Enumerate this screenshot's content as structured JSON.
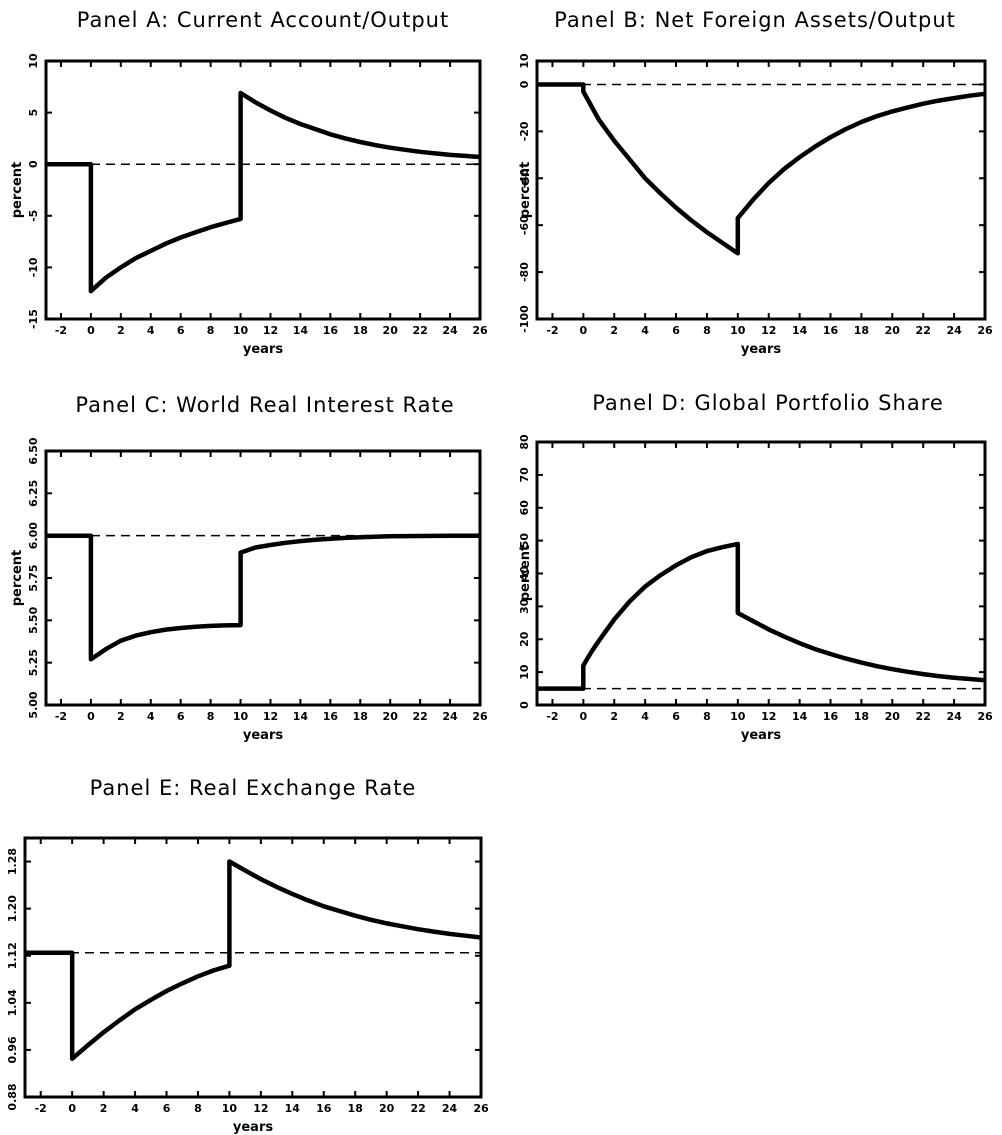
{
  "colors": {
    "line": "#000000",
    "background": "#ffffff"
  },
  "chart_data": [
    {
      "id": "A",
      "type": "line",
      "title": "Panel A: Current Account/Output",
      "xlabel": "years",
      "ylabel": "percent",
      "xlim": [
        -3,
        26
      ],
      "ylim": [
        -15,
        10
      ],
      "xticks": [
        -2,
        0,
        2,
        4,
        6,
        8,
        10,
        12,
        14,
        16,
        18,
        20,
        22,
        24,
        26
      ],
      "xtick_labels": [
        "-2",
        "0",
        "2",
        "4",
        "6",
        "8",
        "10",
        "12",
        "14",
        "16",
        "18",
        "20",
        "22",
        "24",
        "26"
      ],
      "yticks": [
        -15,
        -10,
        -5,
        0,
        5,
        10
      ],
      "ytick_labels": [
        "-15",
        "-10",
        "-5",
        "0",
        "5",
        "10"
      ],
      "baseline": 0,
      "series": [
        {
          "values": [
            [
              -3,
              0
            ],
            [
              0,
              0
            ],
            [
              0,
              -12.3
            ],
            [
              1,
              -11.0
            ],
            [
              2,
              -10.0
            ],
            [
              3,
              -9.1
            ],
            [
              4,
              -8.4
            ],
            [
              5,
              -7.7
            ],
            [
              6,
              -7.1
            ],
            [
              7,
              -6.6
            ],
            [
              8,
              -6.1
            ],
            [
              9,
              -5.7
            ],
            [
              10,
              -5.3
            ],
            [
              10,
              6.9
            ],
            [
              11,
              6.0
            ],
            [
              12,
              5.2
            ],
            [
              13,
              4.5
            ],
            [
              14,
              3.9
            ],
            [
              15,
              3.4
            ],
            [
              16,
              2.9
            ],
            [
              17,
              2.5
            ],
            [
              18,
              2.15
            ],
            [
              19,
              1.85
            ],
            [
              20,
              1.6
            ],
            [
              21,
              1.4
            ],
            [
              22,
              1.2
            ],
            [
              23,
              1.05
            ],
            [
              24,
              0.9
            ],
            [
              25,
              0.8
            ],
            [
              26,
              0.7
            ]
          ]
        }
      ]
    },
    {
      "id": "B",
      "type": "line",
      "title": "Panel B: Net Foreign Assets/Output",
      "xlabel": "years",
      "ylabel": "percent",
      "xlim": [
        -3,
        26
      ],
      "ylim": [
        -100,
        10
      ],
      "xticks": [
        -2,
        0,
        2,
        4,
        6,
        8,
        10,
        12,
        14,
        16,
        18,
        20,
        22,
        24,
        26
      ],
      "xtick_labels": [
        "-2",
        "0",
        "2",
        "4",
        "6",
        "8",
        "10",
        "12",
        "14",
        "16",
        "18",
        "20",
        "22",
        "24",
        "26"
      ],
      "yticks": [
        -100,
        -80,
        -60,
        -40,
        -20,
        0,
        10
      ],
      "ytick_labels": [
        "-100",
        "-80",
        "-60",
        "-40",
        "-20",
        "0",
        "10"
      ],
      "baseline": 0,
      "series": [
        {
          "values": [
            [
              -3,
              0
            ],
            [
              0,
              0
            ],
            [
              0,
              -3
            ],
            [
              0.5,
              -9
            ],
            [
              1,
              -15
            ],
            [
              2,
              -24
            ],
            [
              3,
              -32
            ],
            [
              4,
              -40
            ],
            [
              5,
              -46.5
            ],
            [
              6,
              -52.5
            ],
            [
              7,
              -58
            ],
            [
              8,
              -63
            ],
            [
              9,
              -67.5
            ],
            [
              10,
              -72
            ],
            [
              10,
              -57
            ],
            [
              11,
              -49
            ],
            [
              12,
              -42
            ],
            [
              13,
              -36
            ],
            [
              14,
              -31
            ],
            [
              15,
              -26.5
            ],
            [
              16,
              -22.5
            ],
            [
              17,
              -19
            ],
            [
              18,
              -16
            ],
            [
              19,
              -13.5
            ],
            [
              20,
              -11.5
            ],
            [
              21,
              -9.8
            ],
            [
              22,
              -8.2
            ],
            [
              23,
              -6.9
            ],
            [
              24,
              -5.8
            ],
            [
              25,
              -4.8
            ],
            [
              26,
              -4
            ]
          ]
        }
      ]
    },
    {
      "id": "C",
      "type": "line",
      "title": "Panel C: World Real Interest Rate",
      "xlabel": "years",
      "ylabel": "percent",
      "xlim": [
        -3,
        26
      ],
      "ylim": [
        5.0,
        6.5
      ],
      "xticks": [
        -2,
        0,
        2,
        4,
        6,
        8,
        10,
        12,
        14,
        16,
        18,
        20,
        22,
        24,
        26
      ],
      "xtick_labels": [
        "-2",
        "0",
        "2",
        "4",
        "6",
        "8",
        "10",
        "12",
        "14",
        "16",
        "18",
        "20",
        "22",
        "24",
        "26"
      ],
      "yticks": [
        5.0,
        5.25,
        5.5,
        5.75,
        6.0,
        6.25,
        6.5
      ],
      "ytick_labels": [
        "5.00",
        "5.25",
        "5.50",
        "5.75",
        "6.00",
        "6.25",
        "6.50"
      ],
      "baseline": 6.0,
      "series": [
        {
          "values": [
            [
              -3,
              6.0
            ],
            [
              0,
              6.0
            ],
            [
              0,
              5.27
            ],
            [
              1,
              5.33
            ],
            [
              2,
              5.38
            ],
            [
              3,
              5.41
            ],
            [
              4,
              5.43
            ],
            [
              5,
              5.445
            ],
            [
              6,
              5.455
            ],
            [
              7,
              5.462
            ],
            [
              8,
              5.467
            ],
            [
              9,
              5.47
            ],
            [
              10,
              5.472
            ],
            [
              10,
              5.9
            ],
            [
              11,
              5.93
            ],
            [
              12,
              5.945
            ],
            [
              13,
              5.958
            ],
            [
              14,
              5.968
            ],
            [
              15,
              5.976
            ],
            [
              16,
              5.982
            ],
            [
              17,
              5.987
            ],
            [
              18,
              5.991
            ],
            [
              19,
              5.994
            ],
            [
              20,
              5.996
            ],
            [
              22,
              5.998
            ],
            [
              24,
              5.999
            ],
            [
              26,
              6.0
            ]
          ]
        }
      ]
    },
    {
      "id": "D",
      "type": "line",
      "title": "Panel D: Global Portfolio Share",
      "xlabel": "years",
      "ylabel": "percent",
      "xlim": [
        -3,
        26
      ],
      "ylim": [
        0,
        80
      ],
      "xticks": [
        -2,
        0,
        2,
        4,
        6,
        8,
        10,
        12,
        14,
        16,
        18,
        20,
        22,
        24,
        26
      ],
      "xtick_labels": [
        "-2",
        "0",
        "2",
        "4",
        "6",
        "8",
        "10",
        "12",
        "14",
        "16",
        "18",
        "20",
        "22",
        "24",
        "26"
      ],
      "yticks": [
        0,
        10,
        20,
        30,
        40,
        50,
        60,
        70,
        80
      ],
      "ytick_labels": [
        "0",
        "10",
        "20",
        "30",
        "40",
        "50",
        "60",
        "70",
        "80"
      ],
      "baseline": 5,
      "series": [
        {
          "values": [
            [
              -3,
              5
            ],
            [
              0,
              5
            ],
            [
              0,
              12
            ],
            [
              0.5,
              16
            ],
            [
              1,
              19.5
            ],
            [
              2,
              26
            ],
            [
              3,
              31.5
            ],
            [
              4,
              36
            ],
            [
              5,
              39.5
            ],
            [
              6,
              42.5
            ],
            [
              7,
              45
            ],
            [
              8,
              46.8
            ],
            [
              9,
              48
            ],
            [
              10,
              49
            ],
            [
              10,
              28
            ],
            [
              11,
              25.5
            ],
            [
              12,
              23
            ],
            [
              13,
              20.8
            ],
            [
              14,
              18.8
            ],
            [
              15,
              17
            ],
            [
              16,
              15.5
            ],
            [
              17,
              14.1
            ],
            [
              18,
              12.9
            ],
            [
              19,
              11.8
            ],
            [
              20,
              10.9
            ],
            [
              21,
              10.1
            ],
            [
              22,
              9.4
            ],
            [
              23,
              8.8
            ],
            [
              24,
              8.3
            ],
            [
              25,
              7.9
            ],
            [
              26,
              7.5
            ]
          ]
        }
      ]
    },
    {
      "id": "E",
      "type": "line",
      "title": "Panel E: Real Exchange Rate",
      "xlabel": "years",
      "ylabel": "",
      "xlim": [
        -3,
        26
      ],
      "ylim": [
        0.88,
        1.32
      ],
      "xticks": [
        -2,
        0,
        2,
        4,
        6,
        8,
        10,
        12,
        14,
        16,
        18,
        20,
        22,
        24,
        26
      ],
      "xtick_labels": [
        "-2",
        "0",
        "2",
        "4",
        "6",
        "8",
        "10",
        "12",
        "14",
        "16",
        "18",
        "20",
        "22",
        "24",
        "26"
      ],
      "yticks": [
        0.88,
        0.96,
        1.04,
        1.12,
        1.2,
        1.28
      ],
      "ytick_labels": [
        "0.88",
        "0.96",
        "1.04",
        "1.12",
        "1.20",
        "1.28"
      ],
      "baseline": 1.125,
      "series": [
        {
          "values": [
            [
              -3,
              1.125
            ],
            [
              0,
              1.125
            ],
            [
              0,
              0.945
            ],
            [
              1,
              0.968
            ],
            [
              2,
              0.99
            ],
            [
              3,
              1.01
            ],
            [
              4,
              1.029
            ],
            [
              5,
              1.045
            ],
            [
              6,
              1.06
            ],
            [
              7,
              1.073
            ],
            [
              8,
              1.085
            ],
            [
              9,
              1.095
            ],
            [
              10,
              1.103
            ],
            [
              10,
              1.28
            ],
            [
              11,
              1.265
            ],
            [
              12,
              1.25
            ],
            [
              13,
              1.237
            ],
            [
              14,
              1.225
            ],
            [
              15,
              1.214
            ],
            [
              16,
              1.204
            ],
            [
              17,
              1.196
            ],
            [
              18,
              1.188
            ],
            [
              19,
              1.181
            ],
            [
              20,
              1.175
            ],
            [
              21,
              1.17
            ],
            [
              22,
              1.165
            ],
            [
              23,
              1.161
            ],
            [
              24,
              1.157
            ],
            [
              25,
              1.154
            ],
            [
              26,
              1.151
            ]
          ]
        }
      ]
    }
  ]
}
